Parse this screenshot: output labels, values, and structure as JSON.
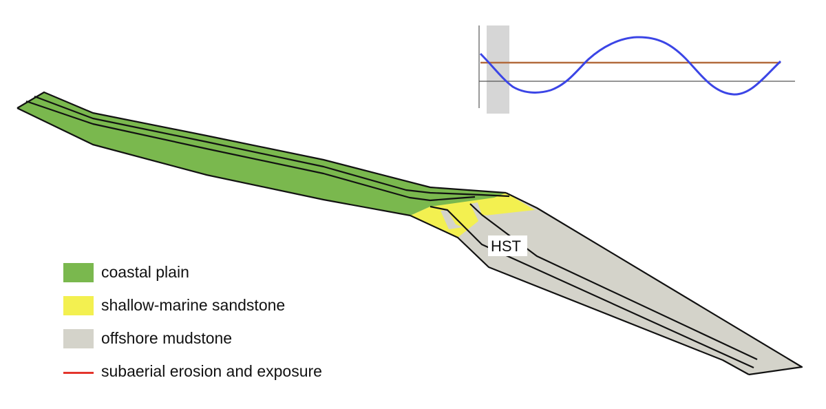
{
  "diagram": {
    "label_hst": "HST"
  },
  "legend": {
    "items": [
      {
        "label": "coastal plain",
        "color": "#7ab84e",
        "kind": "box"
      },
      {
        "label": "shallow-marine sandstone",
        "color": "#f3f050",
        "kind": "box"
      },
      {
        "label": "offshore mudstone",
        "color": "#d4d3ca",
        "kind": "box"
      },
      {
        "label": "subaerial erosion and exposure",
        "color": "#e3352c",
        "kind": "line"
      }
    ]
  },
  "colors": {
    "coastal_plain": "#7ab84e",
    "shallow_marine_sandstone": "#f3f050",
    "offshore_mudstone": "#d4d3ca",
    "outline": "#111111",
    "sea_level_curve": "#3b45e6",
    "reference_line": "#b26a3c",
    "time_marker": "#d6d6d6"
  }
}
